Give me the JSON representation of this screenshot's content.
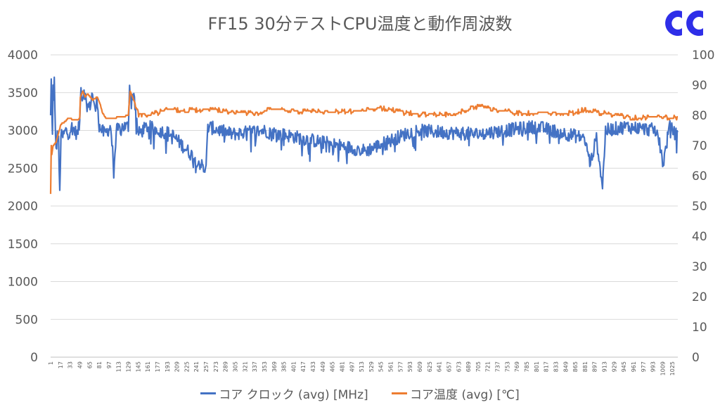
{
  "chart_data": {
    "type": "line",
    "title": "FF15 30分テストCPU温度と動作周波数",
    "x": {
      "start": 1,
      "end": 1034,
      "tick_labels": [
        "1",
        "17",
        "33",
        "49",
        "65",
        "81",
        "97",
        "113",
        "129",
        "145",
        "161",
        "177",
        "193",
        "209",
        "225",
        "241",
        "257",
        "273",
        "289",
        "305",
        "321",
        "337",
        "353",
        "369",
        "385",
        "401",
        "417",
        "433",
        "449",
        "465",
        "481",
        "497",
        "513",
        "529",
        "545",
        "561",
        "577",
        "593",
        "609",
        "625",
        "641",
        "657",
        "673",
        "689",
        "705",
        "721",
        "737",
        "753",
        "769",
        "785",
        "801",
        "817",
        "833",
        "849",
        "865",
        "881",
        "897",
        "913",
        "929",
        "945",
        "961",
        "977",
        "993",
        "1009",
        "1025"
      ]
    },
    "y_left": {
      "min": 0,
      "max": 4000,
      "ticks": [
        "0",
        "500",
        "1000",
        "1500",
        "2000",
        "2500",
        "3000",
        "3500",
        "4000"
      ]
    },
    "y_right": {
      "min": 0,
      "max": 100,
      "ticks": [
        "0",
        "10",
        "20",
        "30",
        "40",
        "50",
        "60",
        "70",
        "80",
        "90",
        "100"
      ]
    },
    "grid": "horizontal",
    "legend_position": "bottom",
    "series": [
      {
        "name": "コア クロック (avg) [MHz]",
        "axis": "left",
        "color": "#4472C4",
        "keypoints": [
          [
            1,
            3200
          ],
          [
            2,
            3680
          ],
          [
            3,
            3250
          ],
          [
            4,
            2950
          ],
          [
            5,
            3600
          ],
          [
            6,
            3400
          ],
          [
            7,
            3650
          ],
          [
            8,
            3300
          ],
          [
            9,
            3000
          ],
          [
            10,
            2700
          ],
          [
            12,
            2950
          ],
          [
            14,
            2850
          ],
          [
            16,
            2150
          ],
          [
            18,
            2950
          ],
          [
            20,
            2900
          ],
          [
            23,
            2950
          ],
          [
            26,
            3000
          ],
          [
            30,
            2950
          ],
          [
            35,
            3050
          ],
          [
            40,
            3000
          ],
          [
            45,
            2950
          ],
          [
            49,
            3100
          ],
          [
            51,
            3640
          ],
          [
            53,
            3400
          ],
          [
            56,
            3550
          ],
          [
            60,
            3350
          ],
          [
            65,
            3300
          ],
          [
            70,
            3500
          ],
          [
            74,
            3250
          ],
          [
            78,
            3400
          ],
          [
            81,
            3050
          ],
          [
            90,
            2950
          ],
          [
            100,
            3050
          ],
          [
            105,
            2500
          ],
          [
            110,
            3000
          ],
          [
            120,
            3050
          ],
          [
            129,
            3050
          ],
          [
            131,
            3600
          ],
          [
            134,
            3400
          ],
          [
            138,
            3500
          ],
          [
            145,
            2950
          ],
          [
            160,
            3050
          ],
          [
            200,
            2950
          ],
          [
            257,
            2480
          ],
          [
            260,
            3050
          ],
          [
            300,
            2950
          ],
          [
            350,
            3000
          ],
          [
            520,
            2730
          ],
          [
            600,
            3000
          ],
          [
            700,
            2950
          ],
          [
            800,
            3050
          ],
          [
            880,
            2900
          ],
          [
            890,
            2560
          ],
          [
            900,
            2900
          ],
          [
            910,
            2260
          ],
          [
            915,
            3000
          ],
          [
            950,
            3050
          ],
          [
            1000,
            3000
          ],
          [
            1010,
            2550
          ],
          [
            1020,
            3050
          ],
          [
            1034,
            2920
          ]
        ]
      },
      {
        "name": "コア温度 (avg) [℃]",
        "axis": "right",
        "color": "#ED7D31",
        "keypoints": [
          [
            1,
            54
          ],
          [
            2,
            70
          ],
          [
            3,
            67
          ],
          [
            5,
            70
          ],
          [
            10,
            71
          ],
          [
            14,
            74
          ],
          [
            18,
            77
          ],
          [
            25,
            78
          ],
          [
            30,
            79
          ],
          [
            40,
            78.5
          ],
          [
            49,
            78.8
          ],
          [
            50,
            86
          ],
          [
            54,
            88
          ],
          [
            58,
            86
          ],
          [
            62,
            87
          ],
          [
            70,
            85
          ],
          [
            78,
            86
          ],
          [
            82,
            84
          ],
          [
            86,
            81
          ],
          [
            92,
            79
          ],
          [
            100,
            79
          ],
          [
            120,
            79.5
          ],
          [
            129,
            80
          ],
          [
            130,
            83
          ],
          [
            132,
            88
          ],
          [
            138,
            85
          ],
          [
            146,
            80
          ],
          [
            160,
            80
          ],
          [
            180,
            81
          ],
          [
            200,
            82
          ],
          [
            220,
            81.5
          ],
          [
            260,
            82
          ],
          [
            300,
            81
          ],
          [
            340,
            80.5
          ],
          [
            360,
            82
          ],
          [
            400,
            81.5
          ],
          [
            450,
            81
          ],
          [
            520,
            81.5
          ],
          [
            540,
            82.5
          ],
          [
            580,
            81
          ],
          [
            600,
            80.5
          ],
          [
            660,
            80
          ],
          [
            700,
            83
          ],
          [
            740,
            81.5
          ],
          [
            780,
            80.5
          ],
          [
            820,
            81
          ],
          [
            860,
            80.5
          ],
          [
            880,
            82
          ],
          [
            900,
            81
          ],
          [
            930,
            80
          ],
          [
            960,
            79
          ],
          [
            990,
            79.5
          ],
          [
            1010,
            79.5
          ],
          [
            1034,
            79
          ]
        ]
      }
    ]
  },
  "legend": {
    "clock_label": "コア クロック (avg) [MHz]",
    "temp_label": "コア温度 (avg) [℃]"
  },
  "logo_icon": "cc-logo-icon"
}
